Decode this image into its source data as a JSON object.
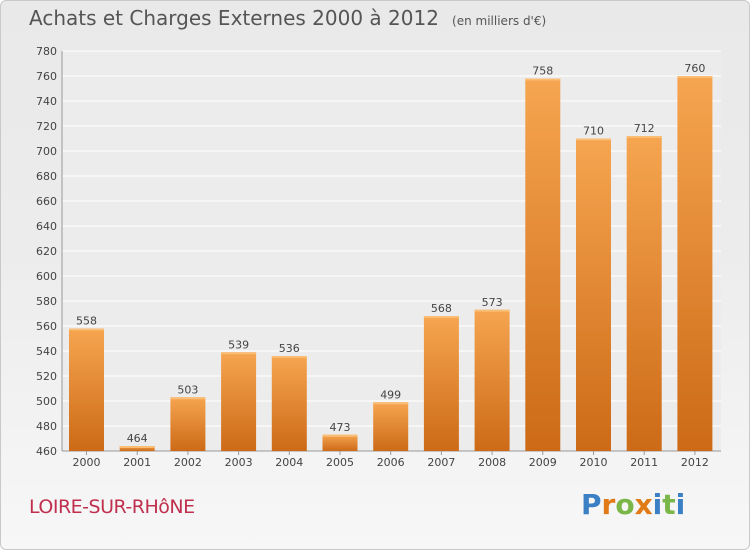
{
  "chart_data": {
    "type": "bar",
    "title": "Achats et Charges Externes 2000 à 2012",
    "subtitle": "(en milliers d'€)",
    "categories": [
      "2000",
      "2001",
      "2002",
      "2003",
      "2004",
      "2005",
      "2006",
      "2007",
      "2008",
      "2009",
      "2010",
      "2011",
      "2012"
    ],
    "values": [
      558,
      464,
      503,
      539,
      536,
      473,
      499,
      568,
      573,
      758,
      710,
      712,
      760
    ],
    "data_labels": [
      "558",
      "464",
      "503",
      "539",
      "536",
      "473",
      "499",
      "568",
      "573",
      "758",
      "710",
      "712",
      "760"
    ],
    "ylim": [
      460,
      780
    ],
    "yticks": [
      460,
      480,
      500,
      520,
      540,
      560,
      580,
      600,
      620,
      640,
      660,
      680,
      700,
      720,
      740,
      760,
      780
    ],
    "grid": true,
    "legend": "none",
    "colors": {
      "bar_light": "#f6a550",
      "bar_dark": "#cc6a17",
      "label": "#444444",
      "axis": "#999999"
    }
  },
  "footer": {
    "place": "LOIRE-SUR-RHôNE",
    "brand": "Proxiti",
    "brand_colors": [
      "#3b7fc4",
      "#e07b18",
      "#7ab648",
      "#e07b18",
      "#3b7fc4",
      "#7ab648",
      "#3b7fc4"
    ]
  }
}
